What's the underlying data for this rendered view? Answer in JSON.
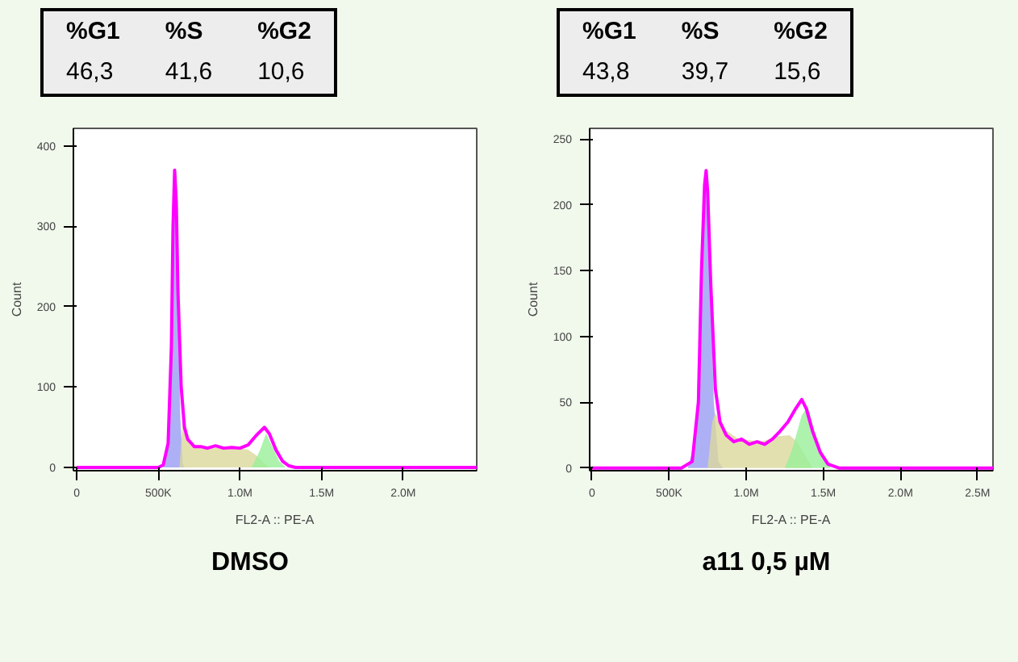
{
  "chart_data": [
    {
      "type": "line",
      "title": "DMSO",
      "xlabel": "FL2-A :: PE-A",
      "ylabel": "Count",
      "annotations": [
        "%G1",
        "%S",
        "%G2",
        "46,3",
        "41,6",
        "10,6"
      ],
      "xlim": [
        -20000,
        2450000
      ],
      "ylim": [
        -4,
        422
      ],
      "xticks": [
        0,
        {
          "value": 500000,
          "label": "500K"
        },
        {
          "value": 1000000,
          "label": "1.0M"
        },
        {
          "value": 1500000,
          "label": "1.5M"
        },
        {
          "value": 2000000,
          "label": "2.0M"
        }
      ],
      "yticks": [
        0,
        100,
        200,
        300,
        400
      ],
      "grid": false,
      "series": [
        {
          "type": "area",
          "color": "#9a9cf2",
          "x": [
            530000,
            560000,
            580000,
            600000,
            610000,
            620000,
            635000,
            650000,
            660000
          ],
          "values": [
            0,
            28,
            148,
            365,
            320,
            200,
            60,
            5,
            0
          ]
        },
        {
          "type": "area",
          "color": "#dcd89c",
          "x": [
            630000,
            650000,
            670000,
            700000,
            800000,
            900000,
            1000000,
            1050000,
            1100000,
            1150000,
            1180000
          ],
          "values": [
            0,
            60,
            35,
            27,
            24,
            25,
            24,
            22,
            15,
            5,
            0
          ]
        },
        {
          "type": "area",
          "color": "#98f098",
          "x": [
            1070000,
            1120000,
            1160000,
            1200000,
            1240000,
            1280000
          ],
          "values": [
            0,
            20,
            42,
            25,
            8,
            0
          ]
        },
        {
          "color": "#ff00ff",
          "x": [
            0,
            500000,
            530000,
            560000,
            580000,
            590000,
            600000,
            610000,
            620000,
            640000,
            660000,
            680000,
            720000,
            760000,
            800000,
            850000,
            900000,
            950000,
            1000000,
            1050000,
            1100000,
            1150000,
            1180000,
            1220000,
            1260000,
            1300000,
            1340000,
            2450000
          ],
          "values": [
            0,
            0,
            3,
            30,
            150,
            300,
            370,
            330,
            220,
            100,
            50,
            35,
            26,
            26,
            24,
            27,
            24,
            25,
            24,
            28,
            40,
            50,
            42,
            22,
            8,
            2,
            0,
            0
          ]
        }
      ]
    },
    {
      "type": "line",
      "title": "a11 0,5 µM",
      "xlabel": "FL2-A :: PE-A",
      "ylabel": "Count",
      "annotations": [
        "%G1",
        "%S",
        "%G2",
        "43,8",
        "39,7",
        "15,6"
      ],
      "xlim": [
        -15000,
        2600000
      ],
      "ylim": [
        -2,
        258
      ],
      "xticks": [
        0,
        {
          "value": 500000,
          "label": "500K"
        },
        {
          "value": 1000000,
          "label": "1.0M"
        },
        {
          "value": 1500000,
          "label": "1.5M"
        },
        {
          "value": 2000000,
          "label": "2.0M"
        },
        {
          "value": 2500000,
          "label": "2.5M"
        }
      ],
      "yticks": [
        0,
        50,
        100,
        150,
        200,
        250
      ],
      "grid": false,
      "series": [
        {
          "type": "area",
          "color": "#9a9cf2",
          "x": [
            620000,
            670000,
            710000,
            740000,
            760000,
            790000,
            820000,
            850000
          ],
          "values": [
            0,
            20,
            140,
            220,
            170,
            50,
            5,
            0
          ]
        },
        {
          "type": "area",
          "color": "#dcd89c",
          "x": [
            750000,
            780000,
            800000,
            850000,
            950000,
            1100000,
            1200000,
            1280000,
            1330000,
            1380000,
            1430000
          ],
          "values": [
            0,
            35,
            42,
            30,
            22,
            20,
            24,
            25,
            20,
            10,
            0
          ]
        },
        {
          "type": "area",
          "color": "#98f098",
          "x": [
            1250000,
            1300000,
            1360000,
            1400000,
            1440000,
            1500000,
            1550000
          ],
          "values": [
            0,
            15,
            40,
            47,
            30,
            8,
            0
          ]
        },
        {
          "color": "#ff00ff",
          "x": [
            0,
            580000,
            650000,
            690000,
            710000,
            730000,
            740000,
            750000,
            770000,
            800000,
            830000,
            870000,
            920000,
            970000,
            1020000,
            1070000,
            1120000,
            1170000,
            1220000,
            1270000,
            1320000,
            1360000,
            1390000,
            1430000,
            1480000,
            1530000,
            1600000,
            2600000
          ],
          "values": [
            0,
            0,
            5,
            50,
            150,
            215,
            226,
            210,
            140,
            60,
            35,
            25,
            20,
            22,
            18,
            20,
            18,
            22,
            28,
            35,
            45,
            52,
            45,
            28,
            12,
            3,
            0,
            0
          ]
        }
      ]
    }
  ]
}
